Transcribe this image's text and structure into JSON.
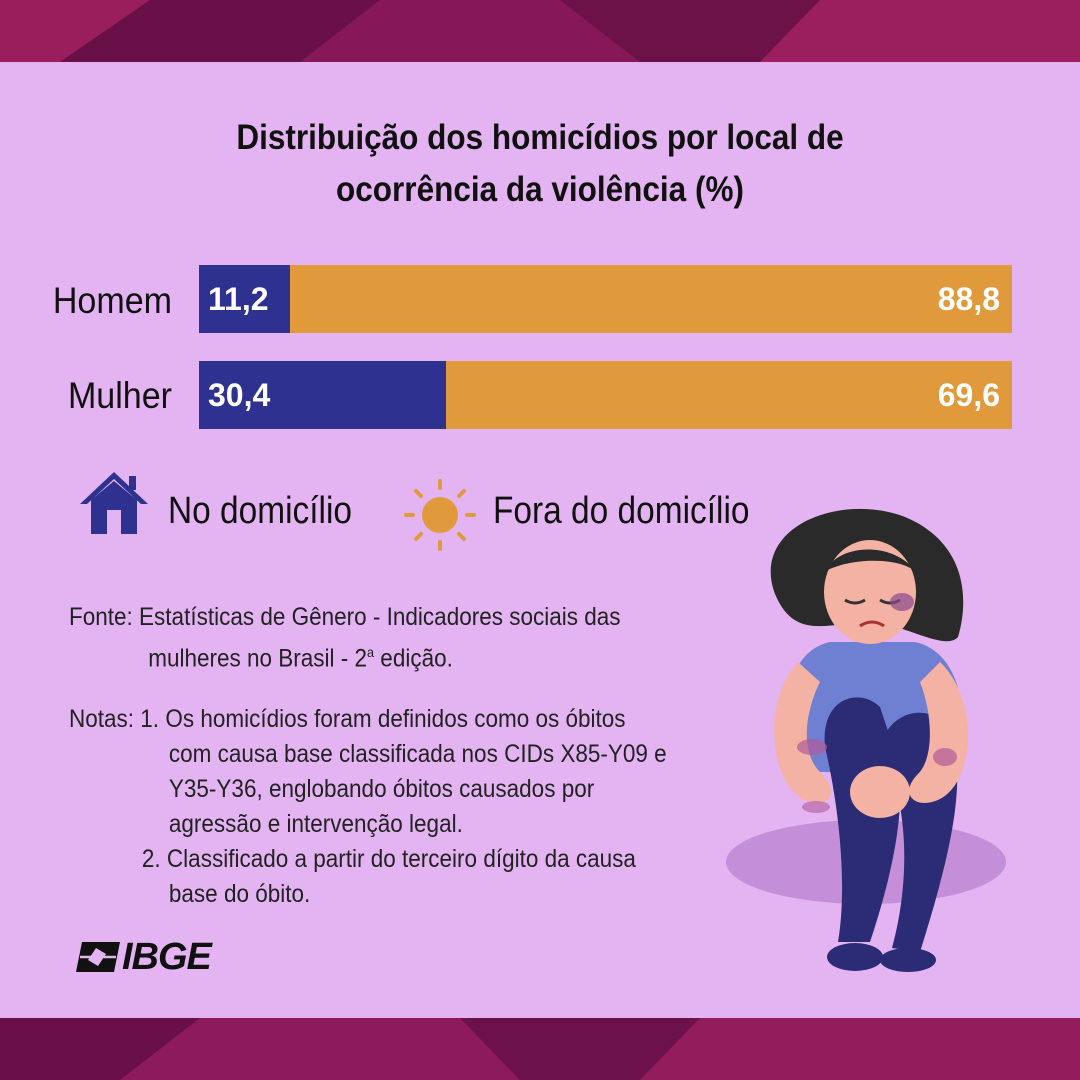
{
  "title_line1": "Distribuição dos homicídios por local de",
  "title_line2": "ocorrência da violência (%)",
  "chart_data": {
    "type": "bar",
    "stacked": true,
    "orientation": "horizontal",
    "title": "Distribuição dos homicídios por local de ocorrência da violência (%)",
    "categories": [
      "Homem",
      "Mulher"
    ],
    "series": [
      {
        "name": "No domicílio",
        "values": [
          11.2,
          30.4
        ],
        "labels": [
          "11,2",
          "30,4"
        ],
        "color": "#2f3190"
      },
      {
        "name": "Fora do domicílio",
        "values": [
          88.8,
          69.6
        ],
        "labels": [
          "88,8",
          "69,6"
        ],
        "color": "#e09a3c"
      }
    ],
    "xlim": [
      0,
      100
    ],
    "grid": false,
    "legend": "below"
  },
  "legend": {
    "home_label": "No domicílio",
    "home_icon": "house-icon",
    "out_label": "Fora do domicílio",
    "out_icon": "sun-icon"
  },
  "source": {
    "label": "Fonte:",
    "line1": "Estatísticas de Gênero - Indicadores sociais das",
    "line2": "mulheres no Brasil - 2",
    "superscript": "a",
    "line2_end": " edição."
  },
  "notes": {
    "label": "Notas:",
    "n1_num": "1.",
    "n1_lines": [
      "Os homicídios foram definidos como os óbitos",
      "com causa base classificada nos CIDs X85-Y09 e",
      "Y35-Y36, englobando óbitos causados por",
      "agressão e intervenção legal."
    ],
    "n2_num": "2.",
    "n2_lines": [
      "Classificado a partir do terceiro dígito da causa",
      "base do óbito."
    ]
  },
  "logo_text": "IBGE",
  "colors": {
    "background": "#e4b4f2",
    "band": "#7a1450",
    "home": "#2f3190",
    "out": "#e09a3c"
  }
}
